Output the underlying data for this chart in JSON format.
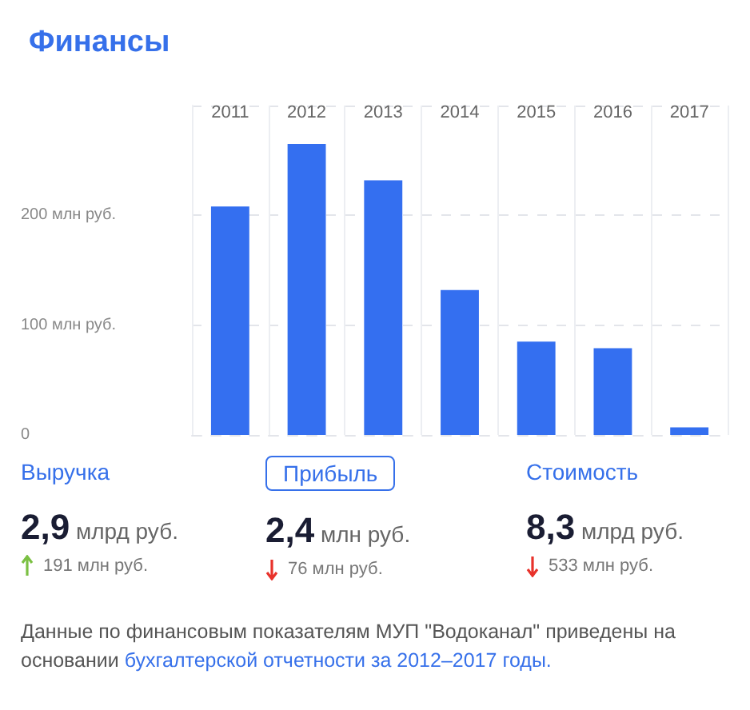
{
  "chart_data": {
    "type": "bar",
    "title": "Финансы",
    "categories": [
      "2011",
      "2012",
      "2013",
      "2014",
      "2015",
      "2016",
      "2017"
    ],
    "values": [
      208,
      265,
      232,
      132,
      85,
      79,
      7
    ],
    "color": "#346ff0",
    "ylim": [
      0,
      300
    ],
    "yticks": [
      0,
      {
        "value": 100,
        "label": "100 млн руб."
      },
      {
        "value": 200,
        "label": "200 млн руб."
      },
      {
        "value": 300,
        "label": null
      }
    ],
    "grid": true,
    "annotations": [
      "Выручка",
      "Прибыль",
      "Стоимость",
      "2,9 млрд руб.",
      "2,4 млн руб.",
      "8,3 млрд руб.",
      "191 млн руб.",
      "76 млн руб.",
      "533 млн руб.",
      "Данные по финансовым показателям МУП \"Водоканал\" приведены на основании",
      "бухгалтерской отчетности за 2012–2017 годы."
    ]
  }
}
